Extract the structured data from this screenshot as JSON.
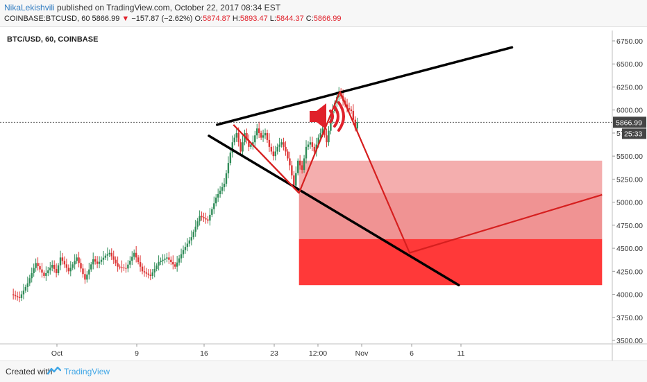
{
  "header": {
    "author": "NikaLekishvili",
    "published_text": " published on TradingView.com, October 22, 2017 08:34 EST",
    "symbol": "COINBASE:BTCUSD, 60",
    "last": "5866.99",
    "change_arrow": "▼",
    "change": "−157.87 (−2.62%)",
    "open_label": "O:",
    "open": "5874.87",
    "high_label": "H:",
    "high": "5893.47",
    "low_label": "L:",
    "low": "5844.37",
    "close_label": "C:",
    "close": "5866.99"
  },
  "footer": {
    "created_with": "Created with",
    "brand": "TradingView"
  },
  "chart_data": {
    "type": "candlestick",
    "title": "BTC/USD, 60, COINBASE",
    "x_tick_labels": [
      "Oct",
      "9",
      "16",
      "23",
      "12:00",
      "Nov",
      "6",
      "11"
    ],
    "y_tick_labels": [
      "6750.00",
      "6500.00",
      "6250.00",
      "6000.00",
      "5750.00",
      "5500.00",
      "5250.00",
      "5000.00",
      "4750.00",
      "4500.00",
      "4250.00",
      "4000.00",
      "3750.00",
      "3500.00"
    ],
    "ylim": [
      3500,
      6750
    ],
    "last_price_label": "5866.99",
    "countdown_label": "25:33",
    "price_path": [
      [
        3,
        4000
      ],
      [
        5,
        3960
      ],
      [
        7,
        4120
      ],
      [
        9,
        4340
      ],
      [
        11,
        4200
      ],
      [
        13,
        4320
      ],
      [
        14,
        4230
      ],
      [
        15,
        4400
      ],
      [
        17,
        4250
      ],
      [
        19,
        4400
      ],
      [
        21,
        4160
      ],
      [
        23,
        4380
      ],
      [
        24,
        4330
      ],
      [
        26,
        4420
      ],
      [
        27,
        4450
      ],
      [
        29,
        4300
      ],
      [
        31,
        4280
      ],
      [
        33,
        4450
      ],
      [
        35,
        4250
      ],
      [
        37,
        4200
      ],
      [
        39,
        4350
      ],
      [
        41,
        4400
      ],
      [
        43,
        4300
      ],
      [
        45,
        4480
      ],
      [
        47,
        4620
      ],
      [
        49,
        4850
      ],
      [
        51,
        4800
      ],
      [
        53,
        5050
      ],
      [
        55,
        5200
      ],
      [
        57,
        5650
      ],
      [
        58,
        5750
      ],
      [
        59,
        5550
      ],
      [
        60,
        5750
      ],
      [
        61,
        5600
      ],
      [
        62,
        5650
      ],
      [
        63,
        5800
      ],
      [
        64,
        5700
      ],
      [
        65,
        5750
      ],
      [
        66,
        5600
      ],
      [
        67,
        5500
      ],
      [
        68,
        5600
      ],
      [
        69,
        5650
      ],
      [
        70,
        5550
      ],
      [
        71,
        5400
      ],
      [
        72,
        5180
      ],
      [
        73,
        5450
      ],
      [
        74,
        5350
      ],
      [
        75,
        5600
      ],
      [
        76,
        5650
      ],
      [
        77,
        5550
      ],
      [
        78,
        5700
      ],
      [
        79,
        5800
      ],
      [
        80,
        5650
      ],
      [
        81,
        5900
      ],
      [
        82,
        6080
      ],
      [
        83,
        6200
      ],
      [
        84,
        6100
      ],
      [
        85,
        6020
      ],
      [
        86,
        5990
      ],
      [
        87,
        5800
      ],
      [
        87.5,
        5866.99
      ]
    ],
    "annotations": {
      "upper_trendline": [
        [
          53,
          5840
        ],
        [
          125,
          6680
        ]
      ],
      "lower_trendline": [
        [
          51,
          5720
        ],
        [
          112,
          4100
        ]
      ],
      "red_pattern_line": [
        [
          57,
          5840
        ],
        [
          73,
          5100
        ],
        [
          83,
          6200
        ],
        [
          100,
          4450
        ],
        [
          147,
          5080
        ]
      ],
      "zones": [
        {
          "from_x": 73,
          "to_x": 147,
          "y_low": 4600,
          "y_high": 5450,
          "color": "#e33b3b",
          "opacity": 0.55
        },
        {
          "from_x": 73,
          "to_x": 147,
          "y_low": 4100,
          "y_high": 4600,
          "color": "#ff1e1e",
          "opacity": 0.88
        }
      ],
      "speaker_icon": "speaker-icon",
      "line_colors": {
        "trend": "#000000",
        "pattern": "#d61f1f"
      }
    },
    "candle_colors": {
      "up": "#2e8b57",
      "down": "#d33"
    }
  }
}
